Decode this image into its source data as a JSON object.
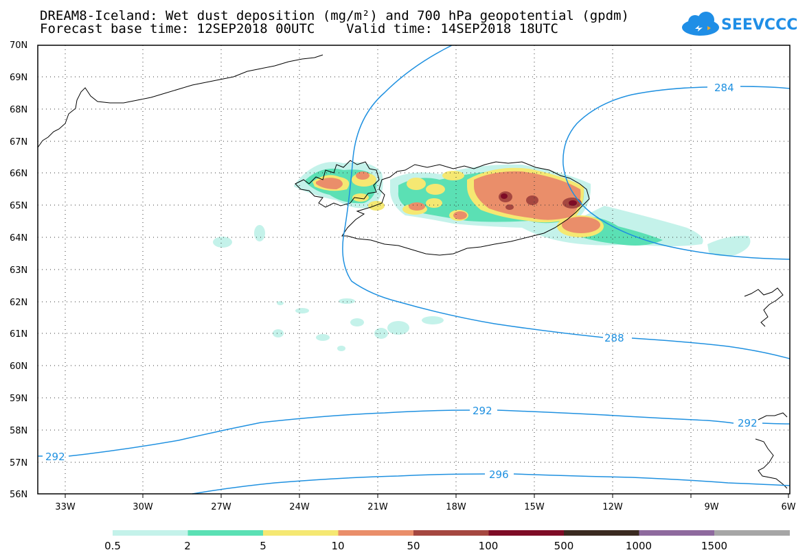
{
  "title_line1": "DREAM8-Iceland: Wet dust deposition (mg/m²) and 700 hPa geopotential (gpdm)",
  "title_line2": "Forecast base time: 12SEP2018 00UTC    Valid time: 14SEP2018 18UTC",
  "logo_text": "SEEVCCC",
  "lat_labels": [
    "70N",
    "69N",
    "68N",
    "67N",
    "66N",
    "65N",
    "64N",
    "63N",
    "62N",
    "61N",
    "60N",
    "59N",
    "58N",
    "57N",
    "56N"
  ],
  "lon_labels": [
    "33W",
    "30W",
    "27W",
    "24W",
    "21W",
    "18W",
    "15W",
    "12W",
    "9W",
    "6W"
  ],
  "contour_labels": [
    "284",
    "288",
    "292",
    "292",
    "292",
    "296"
  ],
  "colorbar": {
    "colors": [
      "#c4f2ea",
      "#5be0b4",
      "#f5e872",
      "#ea8e6a",
      "#a54740",
      "#7e0c26",
      "#3a2a20",
      "#8e6a9e",
      "#a6a6a6"
    ],
    "labels": [
      "0.5",
      "2",
      "5",
      "10",
      "50",
      "100",
      "500",
      "1000",
      "1500"
    ]
  },
  "colors": {
    "contour": "#1e90e0",
    "coast": "#000000"
  }
}
